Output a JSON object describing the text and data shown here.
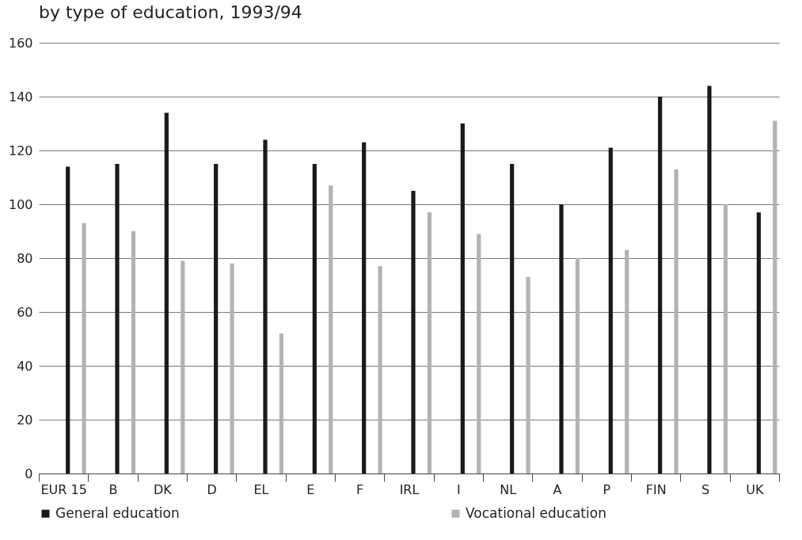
{
  "chart_data": {
    "type": "bar",
    "title": "by type of education, 1993/94",
    "categories": [
      "EUR 15",
      "B",
      "DK",
      "D",
      "EL",
      "E",
      "F",
      "IRL",
      "I",
      "NL",
      "A",
      "P",
      "FIN",
      "S",
      "UK"
    ],
    "series": [
      {
        "name": "General education",
        "color": "#1a1a1a",
        "values": [
          114,
          115,
          134,
          115,
          124,
          115,
          123,
          105,
          130,
          115,
          100,
          121,
          140,
          144,
          97
        ]
      },
      {
        "name": "Vocational education",
        "color": "#b3b3b3",
        "values": [
          93,
          90,
          79,
          78,
          52,
          107,
          77,
          97,
          89,
          73,
          80,
          83,
          113,
          100,
          131
        ]
      }
    ],
    "ylim": [
      0,
      160
    ],
    "yticks": [
      0,
      20,
      40,
      60,
      80,
      100,
      120,
      140,
      160
    ],
    "grid": "y",
    "legend": "bottom"
  }
}
